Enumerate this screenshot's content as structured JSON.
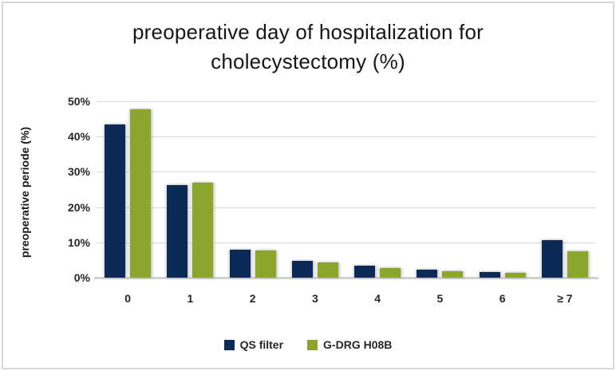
{
  "window": {
    "background_color": "#ffffff",
    "border_color": "#d7d7d7"
  },
  "chart_data": {
    "type": "bar",
    "title_lines": [
      "preoperative day of hospitalization for",
      "cholecystectomy (%)"
    ],
    "title": "preoperative day of hospitalization for cholecystectomy (%)",
    "xlabel": "",
    "ylabel": "preoperative periode (%)",
    "categories": [
      "0",
      "1",
      "2",
      "3",
      "4",
      "5",
      "6",
      "≥ 7"
    ],
    "series": [
      {
        "name": "QS filter",
        "color": "#0b2a57",
        "values": [
          43.5,
          26.3,
          8.0,
          4.8,
          3.4,
          2.3,
          1.7,
          10.7
        ]
      },
      {
        "name": "G-DRG H08B",
        "color": "#8ca52d",
        "values": [
          47.8,
          27.0,
          7.7,
          4.2,
          2.8,
          1.8,
          1.4,
          7.5
        ]
      }
    ],
    "ylim": [
      0,
      50
    ],
    "y_ticks": [
      "0%",
      "10%",
      "20%",
      "30%",
      "40%",
      "50%"
    ],
    "grid": true,
    "gridline_color": "#d9d9d9",
    "axis_line_color": "#d2d2d2",
    "legend_position": "bottom"
  }
}
